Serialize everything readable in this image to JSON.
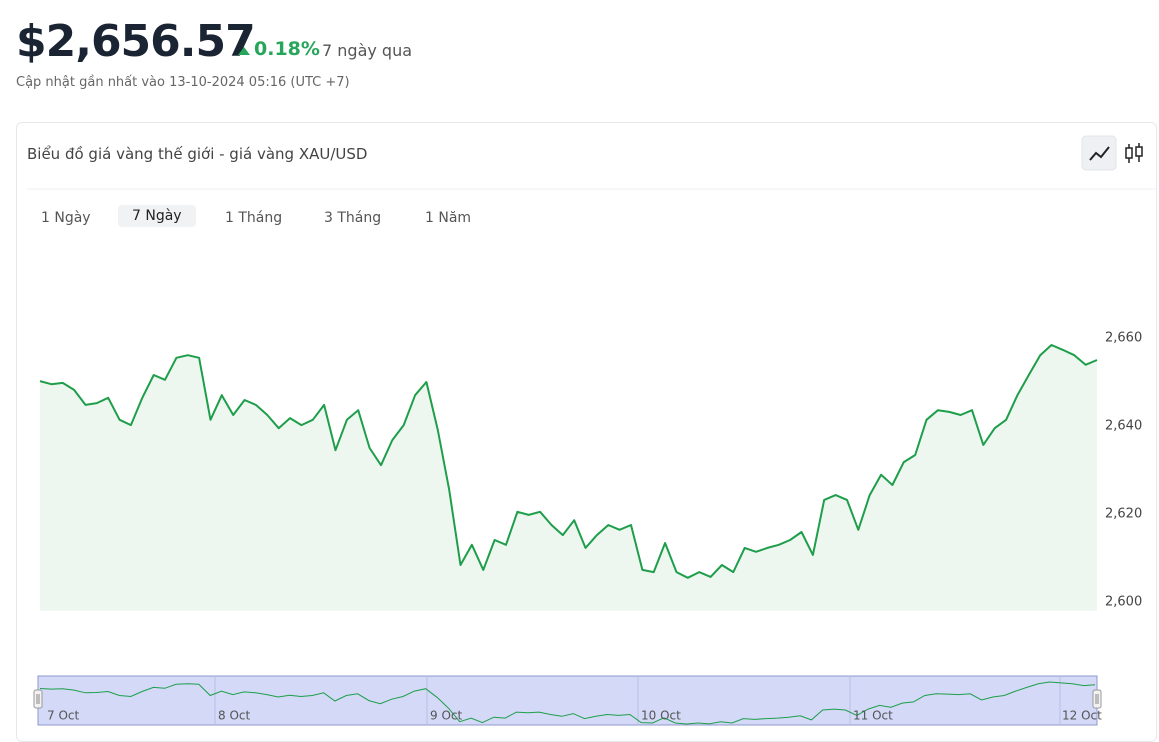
{
  "header": {
    "price": "$2,656.57",
    "change": "0.18%",
    "period": "7 ngày qua",
    "updated": "Cập nhật gần nhất vào 13-10-2024 05:16 (UTC +7)"
  },
  "card": {
    "title": "Biểu đồ giá vàng thế giới - giá vàng XAU/USD",
    "tabs": [
      "1 Ngày",
      "7 Ngày",
      "1 Tháng",
      "3 Tháng",
      "1 Năm"
    ],
    "active_tab": 1
  },
  "chart_data": {
    "type": "line",
    "series": [
      {
        "color": "#1e9e4a",
        "values": [
          2650.2,
          2649.5,
          2649.8,
          2648.2,
          2644.8,
          2645.2,
          2646.4,
          2641.4,
          2640.2,
          2646.4,
          2651.6,
          2650.5,
          2655.5,
          2656.1,
          2655.5,
          2641.4,
          2647,
          2642.5,
          2645.9,
          2644.8,
          2642.5,
          2639.5,
          2641.8,
          2640.2,
          2641.4,
          2644.8,
          2634.5,
          2641.4,
          2643.6,
          2635,
          2631.1,
          2636.8,
          2640.2,
          2647,
          2650,
          2639.1,
          2625.5,
          2608.4,
          2613,
          2607.3,
          2614.1,
          2613,
          2620.5,
          2619.8,
          2620.5,
          2617.5,
          2615.2,
          2618.6,
          2612.3,
          2615.2,
          2617.5,
          2616.4,
          2617.5,
          2607.3,
          2606.8,
          2613.4,
          2606.8,
          2605.5,
          2606.8,
          2605.7,
          2608.4,
          2606.8,
          2612.3,
          2611.4,
          2612.3,
          2613,
          2614.1,
          2615.9,
          2610.7,
          2623.2,
          2624.3,
          2623.2,
          2616.4,
          2624.3,
          2628.9,
          2626.6,
          2631.8,
          2633.4,
          2641.4,
          2643.6,
          2643.2,
          2642.5,
          2643.6,
          2635.7,
          2639.5,
          2641.4,
          2647,
          2651.6,
          2656.1,
          2658.4,
          2657.3,
          2656.1,
          2653.9,
          2655
        ]
      }
    ],
    "ylim": [
      2598,
      2672
    ],
    "yticks": [
      {
        "value": 2600,
        "label": "2,600"
      },
      {
        "value": 2620,
        "label": "2,620"
      },
      {
        "value": 2640,
        "label": "2,640"
      },
      {
        "value": 2660,
        "label": "2,660"
      }
    ],
    "area_fill": "#edf7f0",
    "navigator": {
      "labels": [
        "7 Oct",
        "8 Oct",
        "9 Oct",
        "10 Oct",
        "11 Oct",
        "12 Oct"
      ]
    }
  }
}
